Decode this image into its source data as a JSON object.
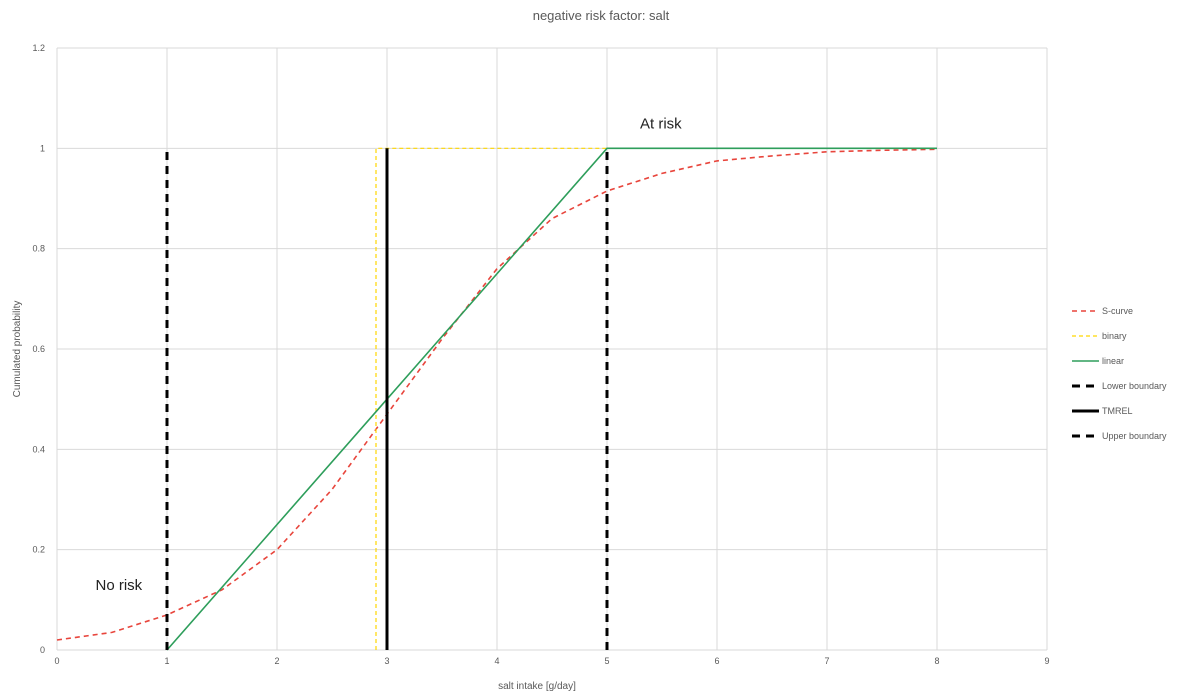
{
  "chart_data": {
    "type": "line",
    "title": "negative risk factor: salt",
    "xlabel": "salt intake [g/day]",
    "ylabel": "Cumulated probability",
    "xlim": [
      0,
      9
    ],
    "ylim": [
      0,
      1.2
    ],
    "xticks": [
      "0",
      "1",
      "2",
      "3",
      "4",
      "5",
      "6",
      "7",
      "8",
      "9"
    ],
    "yticks": [
      "0",
      "0.2",
      "0.4",
      "0.6",
      "0.8",
      "1",
      "1.2"
    ],
    "grid": true,
    "legend_position": "right",
    "series": [
      {
        "name": "S-curve",
        "color": "#e8453c",
        "style": "dashed",
        "x": [
          0,
          0.5,
          1,
          1.5,
          2,
          2.5,
          3,
          3.5,
          4,
          4.5,
          5,
          5.5,
          6,
          6.5,
          7,
          7.5,
          8
        ],
        "y": [
          0.02,
          0.035,
          0.07,
          0.12,
          0.2,
          0.32,
          0.47,
          0.62,
          0.76,
          0.86,
          0.915,
          0.95,
          0.975,
          0.985,
          0.993,
          0.996,
          0.998
        ]
      },
      {
        "name": "binary",
        "color": "#ffd700",
        "style": "dashed",
        "x": [
          2.9,
          2.9,
          3,
          5
        ],
        "y": [
          0,
          1,
          1,
          1
        ]
      },
      {
        "name": "linear",
        "color": "#2e9e5b",
        "style": "solid",
        "x": [
          1,
          5,
          8
        ],
        "y": [
          0,
          1,
          1
        ]
      },
      {
        "name": "Lower boundary",
        "color": "#000000",
        "style": "dashed",
        "x": [
          1,
          1
        ],
        "y": [
          0,
          1
        ]
      },
      {
        "name": "TMREL",
        "color": "#000000",
        "style": "solid",
        "x": [
          3,
          3
        ],
        "y": [
          0,
          1
        ]
      },
      {
        "name": "Upper boundary",
        "color": "#000000",
        "style": "dashed",
        "x": [
          5,
          5
        ],
        "y": [
          0,
          1
        ]
      }
    ],
    "annotations": [
      {
        "text": "At risk",
        "x": 5.3,
        "y": 1.04
      },
      {
        "text": "No risk",
        "x": 0.35,
        "y": 0.12
      }
    ]
  }
}
